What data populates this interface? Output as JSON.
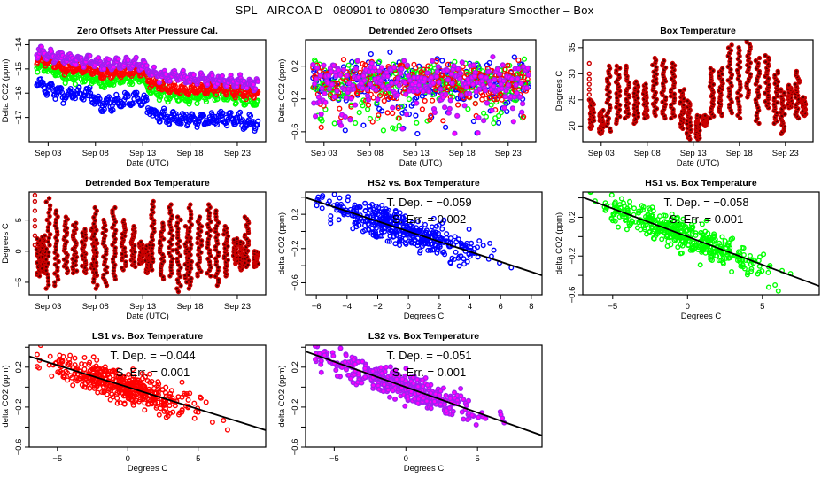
{
  "suptitle": "SPL   AIRCOA D   080901 to 080930   Temperature Smoother – Box",
  "colors": {
    "HS2": "#0000ff",
    "HS1": "#00ff00",
    "LS1": "#ff0000",
    "LS2": "#a020f0",
    "LS2_fill": "#ff00ff",
    "temp": "#cc0000",
    "temp_dark": "#550000",
    "fit_line": "#000000"
  },
  "chart_data": [
    {
      "id": "zero-offsets",
      "type": "scatter",
      "title": "Zero Offsets After Pressure Cal.",
      "xlabel": "Date (UTC)",
      "ylabel": "Delta CO2 (ppm)",
      "xlim": [
        1.0,
        26.0
      ],
      "ylim": [
        -18.0,
        -13.8
      ],
      "x_ticks": [
        3,
        8,
        13,
        18,
        23
      ],
      "x_tick_labels": [
        "Sep 03",
        "Sep 08",
        "Sep 13",
        "Sep 18",
        "Sep 23"
      ],
      "y_ticks": [
        -17,
        -16,
        -15,
        -14
      ],
      "y_tick_labels": [
        "-17",
        "-16",
        "-15",
        "-14"
      ],
      "series": [
        {
          "name": "HS2",
          "color_key": "HS2",
          "baseline": [
            [
              1.8,
              -15.6
            ],
            [
              3,
              -15.8
            ],
            [
              5,
              -16.1
            ],
            [
              7,
              -16.0
            ],
            [
              9,
              -16.5
            ],
            [
              11,
              -16.3
            ],
            [
              13,
              -16.3
            ],
            [
              14,
              -16.8
            ],
            [
              16,
              -17.0
            ],
            [
              18,
              -17.1
            ],
            [
              20,
              -17.1
            ],
            [
              22,
              -17.0
            ],
            [
              24,
              -17.2
            ],
            [
              25.2,
              -17.3
            ]
          ],
          "amp": 0.3
        },
        {
          "name": "HS1",
          "color_key": "HS1",
          "baseline": [
            [
              1.8,
              -14.9
            ],
            [
              3,
              -15.0
            ],
            [
              5,
              -15.3
            ],
            [
              7,
              -15.3
            ],
            [
              9,
              -15.6
            ],
            [
              11,
              -15.4
            ],
            [
              13,
              -15.4
            ],
            [
              14,
              -15.9
            ],
            [
              16,
              -16.1
            ],
            [
              18,
              -16.2
            ],
            [
              20,
              -16.1
            ],
            [
              22,
              -16.1
            ],
            [
              24,
              -16.3
            ],
            [
              25.2,
              -16.4
            ]
          ],
          "amp": 0.25
        },
        {
          "name": "LS1",
          "color_key": "LS1",
          "baseline": [
            [
              1.8,
              -14.6
            ],
            [
              3,
              -14.7
            ],
            [
              5,
              -15.0
            ],
            [
              7,
              -15.0
            ],
            [
              9,
              -15.2
            ],
            [
              11,
              -15.1
            ],
            [
              13,
              -15.1
            ],
            [
              14,
              -15.6
            ],
            [
              16,
              -15.8
            ],
            [
              18,
              -15.9
            ],
            [
              20,
              -15.8
            ],
            [
              22,
              -15.8
            ],
            [
              24,
              -16.0
            ],
            [
              25.2,
              -16.0
            ]
          ],
          "amp": 0.22
        },
        {
          "name": "LS2",
          "color_key": "LS2",
          "baseline": [
            [
              1.8,
              -14.3
            ],
            [
              3,
              -14.4
            ],
            [
              5,
              -14.6
            ],
            [
              7,
              -14.6
            ],
            [
              9,
              -14.8
            ],
            [
              11,
              -14.8
            ],
            [
              13,
              -14.8
            ],
            [
              14,
              -15.2
            ],
            [
              16,
              -15.3
            ],
            [
              18,
              -15.4
            ],
            [
              20,
              -15.4
            ],
            [
              22,
              -15.5
            ],
            [
              24,
              -15.6
            ],
            [
              25.2,
              -15.6
            ]
          ],
          "amp": 0.25
        }
      ]
    },
    {
      "id": "detrended-zero-offsets",
      "type": "scatter",
      "title": "Detrended Zero Offsets",
      "xlabel": "Date (UTC)",
      "ylabel": "Delta CO2 (ppm)",
      "xlim": [
        1.0,
        26.0
      ],
      "ylim": [
        -0.72,
        0.52
      ],
      "x_ticks": [
        3,
        8,
        13,
        18,
        23
      ],
      "x_tick_labels": [
        "Sep 03",
        "Sep 08",
        "Sep 13",
        "Sep 18",
        "Sep 23"
      ],
      "y_ticks": [
        -0.6,
        -0.2,
        0.2
      ],
      "y_tick_labels": [
        "-0.6",
        "-0.2",
        "0.2"
      ],
      "range": [
        -0.68,
        0.45
      ],
      "series_order": [
        "HS2",
        "HS1",
        "LS1",
        "LS2"
      ]
    },
    {
      "id": "box-temperature",
      "type": "scatter",
      "title": "Box Temperature",
      "xlabel": "Date (UTC)",
      "ylabel": "Degrees C",
      "xlim": [
        1.0,
        26.0
      ],
      "ylim": [
        17.0,
        36.5
      ],
      "x_ticks": [
        3,
        8,
        13,
        18,
        23
      ],
      "x_tick_labels": [
        "Sep 03",
        "Sep 08",
        "Sep 13",
        "Sep 18",
        "Sep 23"
      ],
      "y_ticks": [
        20,
        25,
        30,
        35
      ],
      "y_tick_labels": [
        "20",
        "25",
        "30",
        "35"
      ],
      "daily": [
        {
          "day": 2,
          "min": 19.5,
          "max": 25.0
        },
        {
          "day": 3,
          "min": 18.5,
          "max": 23.0
        },
        {
          "day": 3.8,
          "min": 19.0,
          "max": 31.5
        },
        {
          "day": 4.8,
          "min": 20.5,
          "max": 31.5
        },
        {
          "day": 5.8,
          "min": 21.5,
          "max": 31.5
        },
        {
          "day": 6.8,
          "min": 20.5,
          "max": 28.5
        },
        {
          "day": 7.8,
          "min": 21.5,
          "max": 28.0
        },
        {
          "day": 8.8,
          "min": 22.0,
          "max": 33.0
        },
        {
          "day": 9.8,
          "min": 21.5,
          "max": 32.5
        },
        {
          "day": 10.8,
          "min": 21.5,
          "max": 32.0
        },
        {
          "day": 11.8,
          "min": 19.5,
          "max": 27.0
        },
        {
          "day": 12.5,
          "min": 17.5,
          "max": 24.8
        },
        {
          "day": 13.5,
          "min": 17.5,
          "max": 22.0
        },
        {
          "day": 14.3,
          "min": 20.0,
          "max": 22.0
        },
        {
          "day": 15.0,
          "min": 21.5,
          "max": 31.0
        },
        {
          "day": 16.0,
          "min": 22.0,
          "max": 31.0
        },
        {
          "day": 17.0,
          "min": 22.5,
          "max": 35.5
        },
        {
          "day": 18.0,
          "min": 21.5,
          "max": 35.0
        },
        {
          "day": 19.0,
          "min": 25.5,
          "max": 36.5
        },
        {
          "day": 20.0,
          "min": 20.5,
          "max": 33.0
        },
        {
          "day": 21.0,
          "min": 23.5,
          "max": 33.5
        },
        {
          "day": 22.0,
          "min": 20.5,
          "max": 30.5
        },
        {
          "day": 22.7,
          "min": 18.5,
          "max": 27.0
        },
        {
          "day": 23.5,
          "min": 23.5,
          "max": 27.8
        },
        {
          "day": 24.3,
          "min": 21.5,
          "max": 30.5
        },
        {
          "day": 25.0,
          "min": 22.0,
          "max": 25.5
        }
      ],
      "start_column": {
        "day": 1.7,
        "values": [
          32,
          30,
          29,
          28,
          27,
          26,
          25
        ]
      }
    },
    {
      "id": "detrended-box-temperature",
      "type": "scatter",
      "title": "Detrended Box Temperature",
      "xlabel": "Date (UTC)",
      "ylabel": "Degrees C",
      "xlim": [
        1.0,
        26.0
      ],
      "ylim": [
        -7.0,
        9.5
      ],
      "x_ticks": [
        3,
        8,
        13,
        18,
        23
      ],
      "x_tick_labels": [
        "Sep 03",
        "Sep 08",
        "Sep 13",
        "Sep 18",
        "Sep 23"
      ],
      "y_ticks": [
        -5,
        0,
        5
      ],
      "y_tick_labels": [
        "-5",
        "0",
        "5"
      ],
      "daily": [
        {
          "day": 2.0,
          "min": -4.0,
          "max": 2.0
        },
        {
          "day": 2.5,
          "min": -3.5,
          "max": 2.5
        },
        {
          "day": 3.0,
          "min": -6.0,
          "max": 8.5
        },
        {
          "day": 3.9,
          "min": -5.5,
          "max": 6.5
        },
        {
          "day": 4.9,
          "min": -3.5,
          "max": 5.5
        },
        {
          "day": 5.8,
          "min": -3.5,
          "max": 4.5
        },
        {
          "day": 6.8,
          "min": -3.5,
          "max": 3.5
        },
        {
          "day": 7.8,
          "min": -4.0,
          "max": 4.0
        },
        {
          "day": 8.0,
          "min": -6.0,
          "max": 7.0
        },
        {
          "day": 9.0,
          "min": -5.5,
          "max": 5.0
        },
        {
          "day": 10.0,
          "min": -4.5,
          "max": 7.0
        },
        {
          "day": 11.0,
          "min": -3.0,
          "max": 5.0
        },
        {
          "day": 12.0,
          "min": -2.5,
          "max": 4.0
        },
        {
          "day": 12.8,
          "min": -2.0,
          "max": 1.5
        },
        {
          "day": 13.5,
          "min": -3.5,
          "max": 1.0
        },
        {
          "day": 14.0,
          "min": -3.0,
          "max": 8.0
        },
        {
          "day": 15.0,
          "min": -4.5,
          "max": 4.5
        },
        {
          "day": 16.0,
          "min": -4.0,
          "max": 7.5
        },
        {
          "day": 16.8,
          "min": -6.5,
          "max": 5.5
        },
        {
          "day": 17.7,
          "min": -5.0,
          "max": 4.0
        },
        {
          "day": 18.0,
          "min": -6.0,
          "max": 7.5
        },
        {
          "day": 19.0,
          "min": -4.0,
          "max": 5.5
        },
        {
          "day": 20.0,
          "min": -4.0,
          "max": 7.5
        },
        {
          "day": 20.8,
          "min": -5.5,
          "max": 6.5
        },
        {
          "day": 21.8,
          "min": -4.0,
          "max": 4.0
        },
        {
          "day": 22.8,
          "min": -2.0,
          "max": 2.0
        },
        {
          "day": 23.5,
          "min": -3.0,
          "max": 1.5
        },
        {
          "day": 24.0,
          "min": -2.5,
          "max": 5.5
        },
        {
          "day": 25.0,
          "min": -2.5,
          "max": 0.0
        }
      ],
      "start_column": {
        "day": 1.6,
        "values": [
          9,
          8,
          6.5,
          5,
          4,
          2.5,
          1
        ]
      }
    },
    {
      "id": "hs2-vs-box-temperature",
      "type": "scatter",
      "title": "HS2 vs. Box Temperature",
      "xlabel": "Degrees C",
      "ylabel": "delta CO2 (ppm)",
      "color_key": "HS2",
      "xlim": [
        -6.7,
        8.7
      ],
      "ylim": [
        -0.74,
        0.46
      ],
      "x_ticks": [
        -6,
        -4,
        -2,
        0,
        2,
        4,
        6,
        8
      ],
      "x_tick_labels": [
        "-6",
        "-4",
        "-2",
        "0",
        "2",
        "4",
        "6",
        "8"
      ],
      "y_ticks": [
        -0.6,
        -0.4,
        -0.2,
        0.0,
        0.2,
        0.4
      ],
      "y_tick_labels": [
        "-0.6",
        "",
        "-0.2",
        "",
        "0.2",
        ""
      ],
      "fit": {
        "slope": -0.059,
        "intercept": 0.0
      },
      "annotation": [
        "T. Dep. =  −0.059",
        "S. Err. =  0.002"
      ],
      "x_spread": [
        -6.2,
        8.1
      ],
      "noise": 0.09
    },
    {
      "id": "hs1-vs-box-temperature",
      "type": "scatter",
      "title": "HS1 vs. Box Temperature",
      "xlabel": "Degrees C",
      "ylabel": "delta CO2 (ppm)",
      "color_key": "HS1",
      "xlim": [
        -7.0,
        8.8
      ],
      "ylim": [
        -0.6,
        0.46
      ],
      "x_ticks": [
        -5,
        0,
        5
      ],
      "x_tick_labels": [
        "-5",
        "0",
        "5"
      ],
      "y_ticks": [
        -0.6,
        -0.4,
        -0.2,
        0.0,
        0.2,
        0.4
      ],
      "y_tick_labels": [
        "-0.6",
        "",
        "-0.2",
        "",
        "0.2",
        ""
      ],
      "fit": {
        "slope": -0.058,
        "intercept": 0.0
      },
      "annotation": [
        "T. Dep. =  −0.058",
        "S. Err. =  0.001"
      ],
      "x_spread": [
        -6.5,
        8.3
      ],
      "noise": 0.08
    },
    {
      "id": "ls1-vs-box-temperature",
      "type": "scatter",
      "title": "LS1 vs. Box Temperature",
      "xlabel": "Degrees C",
      "ylabel": "delta CO2 (ppm)",
      "color_key": "LS1",
      "xlim": [
        -7.0,
        9.8
      ],
      "ylim": [
        -0.6,
        0.42
      ],
      "x_ticks": [
        -5,
        0,
        5
      ],
      "x_tick_labels": [
        "-5",
        "0",
        "5"
      ],
      "y_ticks": [
        -0.6,
        -0.4,
        -0.2,
        0.0,
        0.2,
        0.4
      ],
      "y_tick_labels": [
        "-0.6",
        "",
        "-0.2",
        "",
        "0.2",
        ""
      ],
      "fit": {
        "slope": -0.044,
        "intercept": 0.0
      },
      "annotation": [
        "T. Dep. =  −0.044",
        "S. Err. =  0.001"
      ],
      "x_spread": [
        -6.5,
        9.2
      ],
      "noise": 0.08
    },
    {
      "id": "ls2-vs-box-temperature",
      "type": "scatter",
      "title": "LS2 vs. Box Temperature",
      "xlabel": "Degrees C",
      "ylabel": "delta CO2 (ppm)",
      "color_key": "LS2",
      "xlim": [
        -7.0,
        9.5
      ],
      "ylim": [
        -0.6,
        0.42
      ],
      "x_ticks": [
        -5,
        0,
        5
      ],
      "x_tick_labels": [
        "-5",
        "0",
        "5"
      ],
      "y_ticks": [
        -0.6,
        -0.4,
        -0.2,
        0.0,
        0.2,
        0.4
      ],
      "y_tick_labels": [
        "-0.6",
        "",
        "-0.2",
        "",
        "0.2",
        ""
      ],
      "fit": {
        "slope": -0.051,
        "intercept": 0.0
      },
      "annotation": [
        "T. Dep. =  −0.051",
        "S. Err. =  0.001"
      ],
      "x_spread": [
        -6.5,
        9.0
      ],
      "noise": 0.07
    }
  ]
}
